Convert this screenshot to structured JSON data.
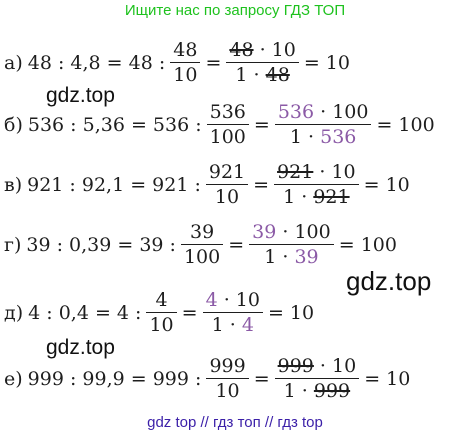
{
  "header": "Ищите нас по запросу ГДЗ ТОП",
  "footer": "gdz top  //  гдз топ  //  гдз top",
  "watermarks": [
    "gdz.top",
    "gdz.top",
    "gdz.top"
  ],
  "rows": [
    {
      "label": "а)",
      "prefix": "48 : 4,8 = 48 :",
      "frac1": {
        "num": "48",
        "den": "10"
      },
      "frac2": {
        "num_a": "48",
        "num_b": " · 10",
        "den_a": "1 · ",
        "den_b": "48"
      },
      "result": "= 10"
    },
    {
      "label": "б)",
      "prefix": "536 : 5,36 = 536 :",
      "frac1": {
        "num": "536",
        "den": "100"
      },
      "frac2": {
        "num_a": "536",
        "num_b": " · 100",
        "den_a": "1 · ",
        "den_b": "536"
      },
      "result": "= 100"
    },
    {
      "label": "в)",
      "prefix": "921 : 92,1 = 921 :",
      "frac1": {
        "num": "921",
        "den": "10"
      },
      "frac2": {
        "num_a": "921",
        "num_b": " · 10",
        "den_a": "1 · ",
        "den_b": "921"
      },
      "result": "= 10"
    },
    {
      "label": "г)",
      "prefix": "39 : 0,39 = 39 :",
      "frac1": {
        "num": "39",
        "den": "100"
      },
      "frac2": {
        "num_a": "39",
        "num_b": " · 100",
        "den_a": "1 · ",
        "den_b": "39"
      },
      "result": "= 100"
    },
    {
      "label": "д)",
      "prefix": "4 : 0,4 = 4 :",
      "frac1": {
        "num": "4",
        "den": "10"
      },
      "frac2": {
        "num_a": "4",
        "num_b": " · 10",
        "den_a": "1 · ",
        "den_b": "4"
      },
      "result": "= 10"
    },
    {
      "label": "е)",
      "prefix": "999 : 99,9 = 999 :",
      "frac1": {
        "num": "999",
        "den": "10"
      },
      "frac2": {
        "num_a": "999",
        "num_b": " · 10",
        "den_a": "1 · ",
        "den_b": "999"
      },
      "result": "= 10"
    }
  ]
}
